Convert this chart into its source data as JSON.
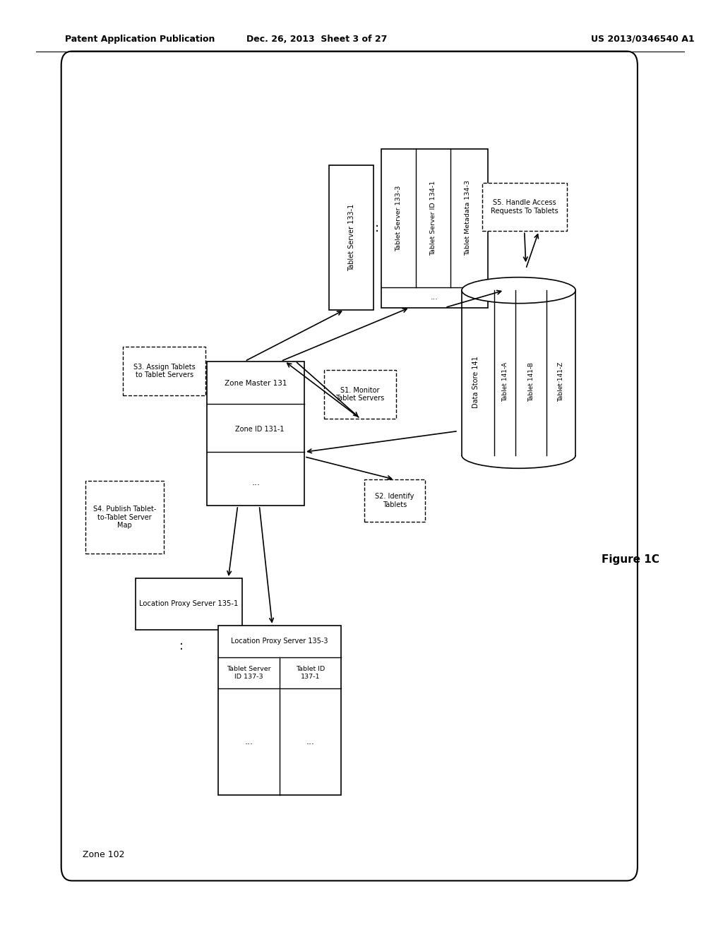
{
  "header_left": "Patent Application Publication",
  "header_mid": "Dec. 26, 2013  Sheet 3 of 27",
  "header_right": "US 2013/0346540 A1",
  "figure_label": "Figure 1C",
  "zone_label": "Zone 102",
  "bg_color": "#ffffff"
}
